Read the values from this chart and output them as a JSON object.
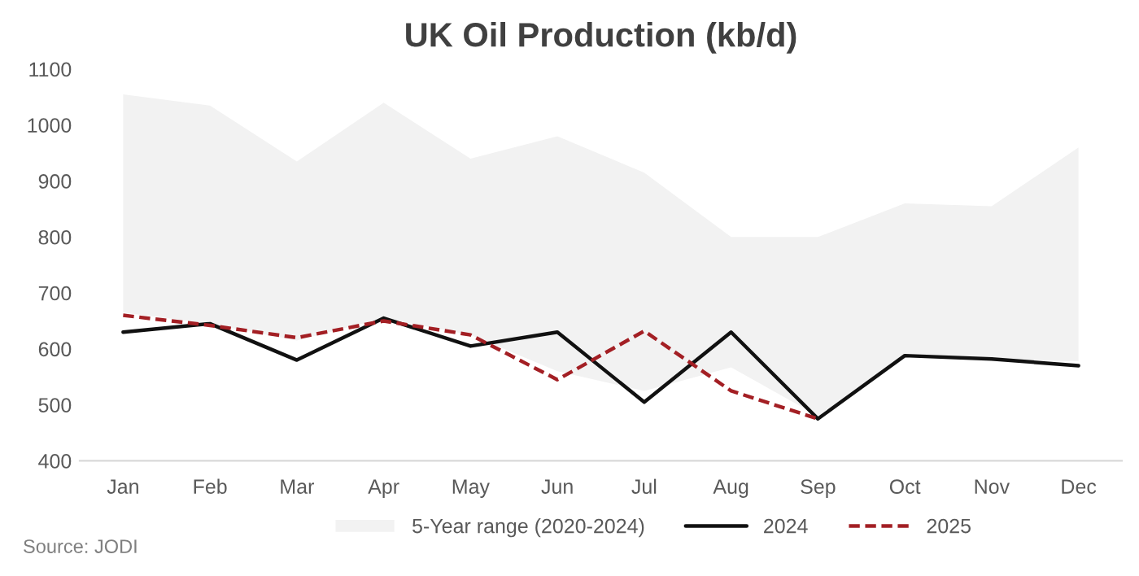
{
  "chart_data": {
    "type": "line",
    "title": "UK Oil Production (kb/d)",
    "categories": [
      "Jan",
      "Feb",
      "Mar",
      "Apr",
      "May",
      "Jun",
      "Jul",
      "Aug",
      "Sep",
      "Oct",
      "Nov",
      "Dec"
    ],
    "series": [
      {
        "name": "5-Year range (2020-2024)",
        "type": "area",
        "color": "#f2f2f2",
        "lower": [
          665,
          645,
          615,
          655,
          625,
          560,
          525,
          567,
          480,
          585,
          580,
          578
        ],
        "upper": [
          1055,
          1035,
          935,
          1040,
          940,
          980,
          915,
          800,
          800,
          860,
          855,
          960
        ],
        "values": [
          null,
          null,
          null,
          null,
          null,
          null,
          null,
          null,
          null,
          null,
          null,
          null
        ]
      },
      {
        "name": "2024",
        "color": "#111111",
        "line_style": "solid",
        "values": [
          630,
          645,
          580,
          655,
          605,
          630,
          505,
          630,
          475,
          588,
          582,
          570
        ]
      },
      {
        "name": "2025",
        "color": "#a31f24",
        "line_style": "dashed",
        "values": [
          660,
          642,
          620,
          650,
          625,
          545,
          632,
          525,
          475,
          null,
          null,
          null
        ]
      }
    ],
    "ylim": [
      400,
      1100
    ],
    "yticks": [
      400,
      500,
      600,
      700,
      800,
      900,
      1000,
      1100
    ],
    "grid": false,
    "legend": "bottom",
    "annotations": [
      "Source: JODI"
    ]
  }
}
